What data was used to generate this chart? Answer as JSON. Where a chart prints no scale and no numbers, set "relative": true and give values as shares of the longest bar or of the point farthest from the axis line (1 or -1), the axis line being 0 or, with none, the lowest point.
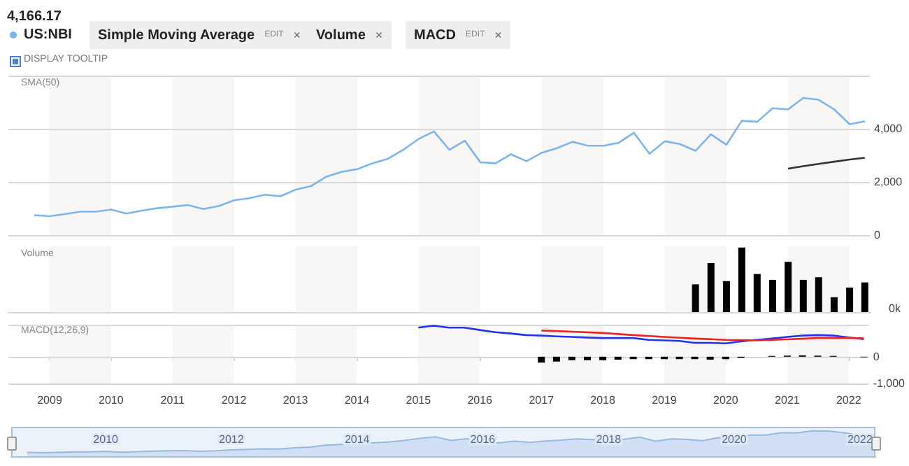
{
  "chart_data": [
    {
      "type": "line",
      "title": "4,166.17",
      "subtitle": "SMA(50)",
      "legend": "top left",
      "marker": "none",
      "line_style": "solid",
      "grid": "y",
      "tick_labels": "y",
      "annotations": [
        "Simple Moving Average",
        "EDIT",
        "×",
        "Volume",
        "×",
        "MACD",
        "EDIT",
        "×",
        "DISPLAY TOOLTIP"
      ],
      "xlim": [
        "2008-05",
        "2022-05"
      ],
      "xticks": [
        "2009",
        "2010",
        "2011",
        "2012",
        "2013",
        "2014",
        "2015",
        "2016",
        "2017",
        "2018",
        "2019",
        "2020",
        "2021",
        "2022"
      ],
      "ylim": [
        0,
        6000
      ],
      "yticks": [
        0,
        {
          "value": 2000,
          "label": "2,000"
        },
        {
          "value": 4000,
          "label": "4,000"
        }
      ],
      "bands": [
        {
          "axis": "x",
          "from": "2009",
          "to": "2010",
          "color": "#f7f6f5"
        },
        {
          "axis": "x",
          "from": "2011",
          "to": "2012",
          "color": "#f7f6f5"
        },
        {
          "axis": "x",
          "from": "2013",
          "to": "2014",
          "color": "#f7f6f5"
        },
        {
          "axis": "x",
          "from": "2015",
          "to": "2016",
          "color": "#f7f6f5"
        },
        {
          "axis": "x",
          "from": "2017",
          "to": "2018",
          "color": "#f7f6f5"
        },
        {
          "axis": "x",
          "from": "2019",
          "to": "2020",
          "color": "#f7f6f5"
        },
        {
          "axis": "x",
          "from": "2021",
          "to": "2022",
          "color": "#f7f6f5"
        }
      ],
      "x": [
        "2008-10",
        "2009-01",
        "2009-04",
        "2009-07",
        "2009-10",
        "2010-01",
        "2010-04",
        "2010-07",
        "2010-10",
        "2011-01",
        "2011-04",
        "2011-07",
        "2011-10",
        "2012-01",
        "2012-04",
        "2012-07",
        "2012-10",
        "2013-01",
        "2013-04",
        "2013-07",
        "2013-10",
        "2014-01",
        "2014-04",
        "2014-07",
        "2014-10",
        "2015-01",
        "2015-04",
        "2015-07",
        "2015-10",
        "2016-01",
        "2016-04",
        "2016-07",
        "2016-10",
        "2017-01",
        "2017-04",
        "2017-07",
        "2017-10",
        "2018-01",
        "2018-04",
        "2018-07",
        "2018-10",
        "2019-01",
        "2019-04",
        "2019-07",
        "2019-10",
        "2020-01",
        "2020-04",
        "2020-07",
        "2020-10",
        "2021-01",
        "2021-04",
        "2021-07",
        "2021-10",
        "2022-01",
        "2022-04"
      ],
      "series": [
        {
          "name": "US:NBI",
          "color": "#7cb5ec",
          "values": [
            750,
            710,
            790,
            880,
            880,
            960,
            810,
            920,
            1010,
            1070,
            1130,
            980,
            1090,
            1310,
            1390,
            1520,
            1460,
            1710,
            1840,
            2200,
            2380,
            2480,
            2700,
            2870,
            3210,
            3620,
            3900,
            3210,
            3550,
            2740,
            2700,
            3040,
            2780,
            3100,
            3270,
            3510,
            3360,
            3360,
            3470,
            3850,
            3060,
            3530,
            3420,
            3170,
            3790,
            3400,
            4300,
            4260,
            4770,
            4730,
            5160,
            5090,
            4730,
            4170,
            4280
          ]
        },
        {
          "color": "#333333",
          "x": [
            "2021-01",
            "2021-04",
            "2021-07",
            "2021-10",
            "2022-01",
            "2022-04"
          ],
          "values": [
            2500,
            2590,
            2680,
            2760,
            2840,
            2910
          ]
        }
      ]
    },
    {
      "type": "bar",
      "title": "Volume",
      "relative": true,
      "tick_labels": false,
      "annotations": [
        "0k"
      ],
      "xlim": [
        "2008-05",
        "2022-05"
      ],
      "bands": [
        {
          "axis": "x",
          "from": "2009",
          "to": "2010",
          "color": "#f7f6f5"
        },
        {
          "axis": "x",
          "from": "2011",
          "to": "2012",
          "color": "#f7f6f5"
        },
        {
          "axis": "x",
          "from": "2013",
          "to": "2014",
          "color": "#f7f6f5"
        },
        {
          "axis": "x",
          "from": "2015",
          "to": "2016",
          "color": "#f7f6f5"
        },
        {
          "axis": "x",
          "from": "2017",
          "to": "2018",
          "color": "#f7f6f5"
        },
        {
          "axis": "x",
          "from": "2019",
          "to": "2020",
          "color": "#f7f6f5"
        },
        {
          "axis": "x",
          "from": "2021",
          "to": "2022",
          "color": "#f7f6f5"
        }
      ],
      "x": [
        "2019-07",
        "2019-10",
        "2020-01",
        "2020-04",
        "2020-07",
        "2020-10",
        "2021-01",
        "2021-04",
        "2021-07",
        "2021-10",
        "2022-01",
        "2022-04"
      ],
      "series": [
        {
          "color": "#000000",
          "values": [
            0.43,
            0.76,
            0.48,
            1,
            0.59,
            0.5,
            0.78,
            0.5,
            0.54,
            0.23,
            0.38,
            0.46
          ]
        }
      ]
    },
    {
      "type": "line",
      "title": "MACD(12,26,9)",
      "marker": "none",
      "line_style": "solid",
      "grid": "y",
      "xlim": [
        "2008-05",
        "2022-05"
      ],
      "xticks": [
        "2009",
        "2010",
        "2011",
        "2012",
        "2013",
        "2014",
        "2015",
        "2016",
        "2017",
        "2018",
        "2019",
        "2020",
        "2021",
        "2022"
      ],
      "ylim": [
        -1000,
        1200
      ],
      "yticks": [
        {
          "value": -1000,
          "label": "-1,000"
        },
        0
      ],
      "bands": [
        {
          "axis": "x",
          "from": "2009",
          "to": "2010",
          "color": "#f7f6f5"
        },
        {
          "axis": "x",
          "from": "2011",
          "to": "2012",
          "color": "#f7f6f5"
        },
        {
          "axis": "x",
          "from": "2013",
          "to": "2014",
          "color": "#f7f6f5"
        },
        {
          "axis": "x",
          "from": "2015",
          "to": "2016",
          "color": "#f7f6f5"
        },
        {
          "axis": "x",
          "from": "2017",
          "to": "2018",
          "color": "#f7f6f5"
        },
        {
          "axis": "x",
          "from": "2019",
          "to": "2020",
          "color": "#f7f6f5"
        },
        {
          "axis": "x",
          "from": "2021",
          "to": "2022",
          "color": "#f7f6f5"
        }
      ],
      "series": [
        {
          "color": "#2233ee",
          "x": [
            "2015-01",
            "2015-04",
            "2015-07",
            "2015-10",
            "2016-01",
            "2016-04",
            "2016-07",
            "2016-10",
            "2017-01",
            "2017-04",
            "2017-07",
            "2017-10",
            "2018-01",
            "2018-04",
            "2018-07",
            "2018-10",
            "2019-01",
            "2019-04",
            "2019-07",
            "2019-10",
            "2020-01",
            "2020-04",
            "2020-07",
            "2020-10",
            "2021-01",
            "2021-04",
            "2021-07",
            "2021-10",
            "2022-01",
            "2022-04"
          ],
          "values": [
            1090,
            1160,
            1090,
            1090,
            1000,
            920,
            870,
            810,
            790,
            760,
            740,
            720,
            700,
            700,
            700,
            630,
            610,
            590,
            520,
            520,
            500,
            570,
            630,
            680,
            740,
            790,
            810,
            790,
            720,
            660
          ]
        },
        {
          "color": "#ee2222",
          "x": [
            "2017-01",
            "2017-07",
            "2018-01",
            "2018-07",
            "2019-01",
            "2019-07",
            "2020-01",
            "2020-07",
            "2021-01",
            "2021-07",
            "2022-01",
            "2022-04"
          ],
          "values": [
            980,
            940,
            890,
            810,
            740,
            680,
            630,
            610,
            650,
            700,
            700,
            690
          ]
        },
        {
          "type": "bar",
          "color": "#000000",
          "x": [
            "2017-01",
            "2017-04",
            "2017-07",
            "2017-10",
            "2018-01",
            "2018-04",
            "2018-07",
            "2018-10",
            "2019-01",
            "2019-04",
            "2019-07",
            "2019-10",
            "2020-01",
            "2020-04",
            "2020-07",
            "2020-10",
            "2021-01",
            "2021-04",
            "2021-07",
            "2021-10",
            "2022-01",
            "2022-04"
          ],
          "values": [
            -220,
            -180,
            -130,
            -130,
            -130,
            -110,
            -90,
            -90,
            -90,
            -90,
            -90,
            -110,
            -90,
            -40,
            null,
            30,
            40,
            50,
            40,
            30,
            null,
            -20
          ]
        }
      ]
    },
    {
      "type": "area",
      "relative": true,
      "tick_labels": "x",
      "marker": "none",
      "xlim": [
        "2008-07",
        "2022-04"
      ],
      "xticks": [
        "2010",
        "2012",
        "2014",
        "2016",
        "2018",
        "2020",
        "2022"
      ],
      "x": [
        "2008-10",
        "2009-01",
        "2009-04",
        "2009-07",
        "2009-10",
        "2010-01",
        "2010-04",
        "2010-07",
        "2010-10",
        "2011-01",
        "2011-04",
        "2011-07",
        "2011-10",
        "2012-01",
        "2012-04",
        "2012-07",
        "2012-10",
        "2013-01",
        "2013-04",
        "2013-07",
        "2013-10",
        "2014-01",
        "2014-04",
        "2014-07",
        "2014-10",
        "2015-01",
        "2015-04",
        "2015-07",
        "2015-10",
        "2016-01",
        "2016-04",
        "2016-07",
        "2016-10",
        "2017-01",
        "2017-04",
        "2017-07",
        "2017-10",
        "2018-01",
        "2018-04",
        "2018-07",
        "2018-10",
        "2019-01",
        "2019-04",
        "2019-07",
        "2019-10",
        "2020-01",
        "2020-04",
        "2020-07",
        "2020-10",
        "2021-01",
        "2021-04",
        "2021-07",
        "2021-10",
        "2022-01",
        "2022-04"
      ],
      "series": [
        {
          "color": "#7fa7d9",
          "values": [
            0.15,
            0.14,
            0.15,
            0.17,
            0.17,
            0.19,
            0.16,
            0.18,
            0.2,
            0.21,
            0.22,
            0.19,
            0.21,
            0.25,
            0.27,
            0.29,
            0.28,
            0.33,
            0.36,
            0.43,
            0.46,
            0.48,
            0.52,
            0.56,
            0.62,
            0.7,
            0.76,
            0.62,
            0.69,
            0.53,
            0.52,
            0.59,
            0.54,
            0.6,
            0.63,
            0.68,
            0.65,
            0.65,
            0.67,
            0.75,
            0.59,
            0.68,
            0.66,
            0.61,
            0.73,
            0.66,
            0.83,
            0.83,
            0.92,
            0.92,
            1,
            0.99,
            0.92,
            0.81,
            0.83
          ]
        }
      ]
    }
  ]
}
